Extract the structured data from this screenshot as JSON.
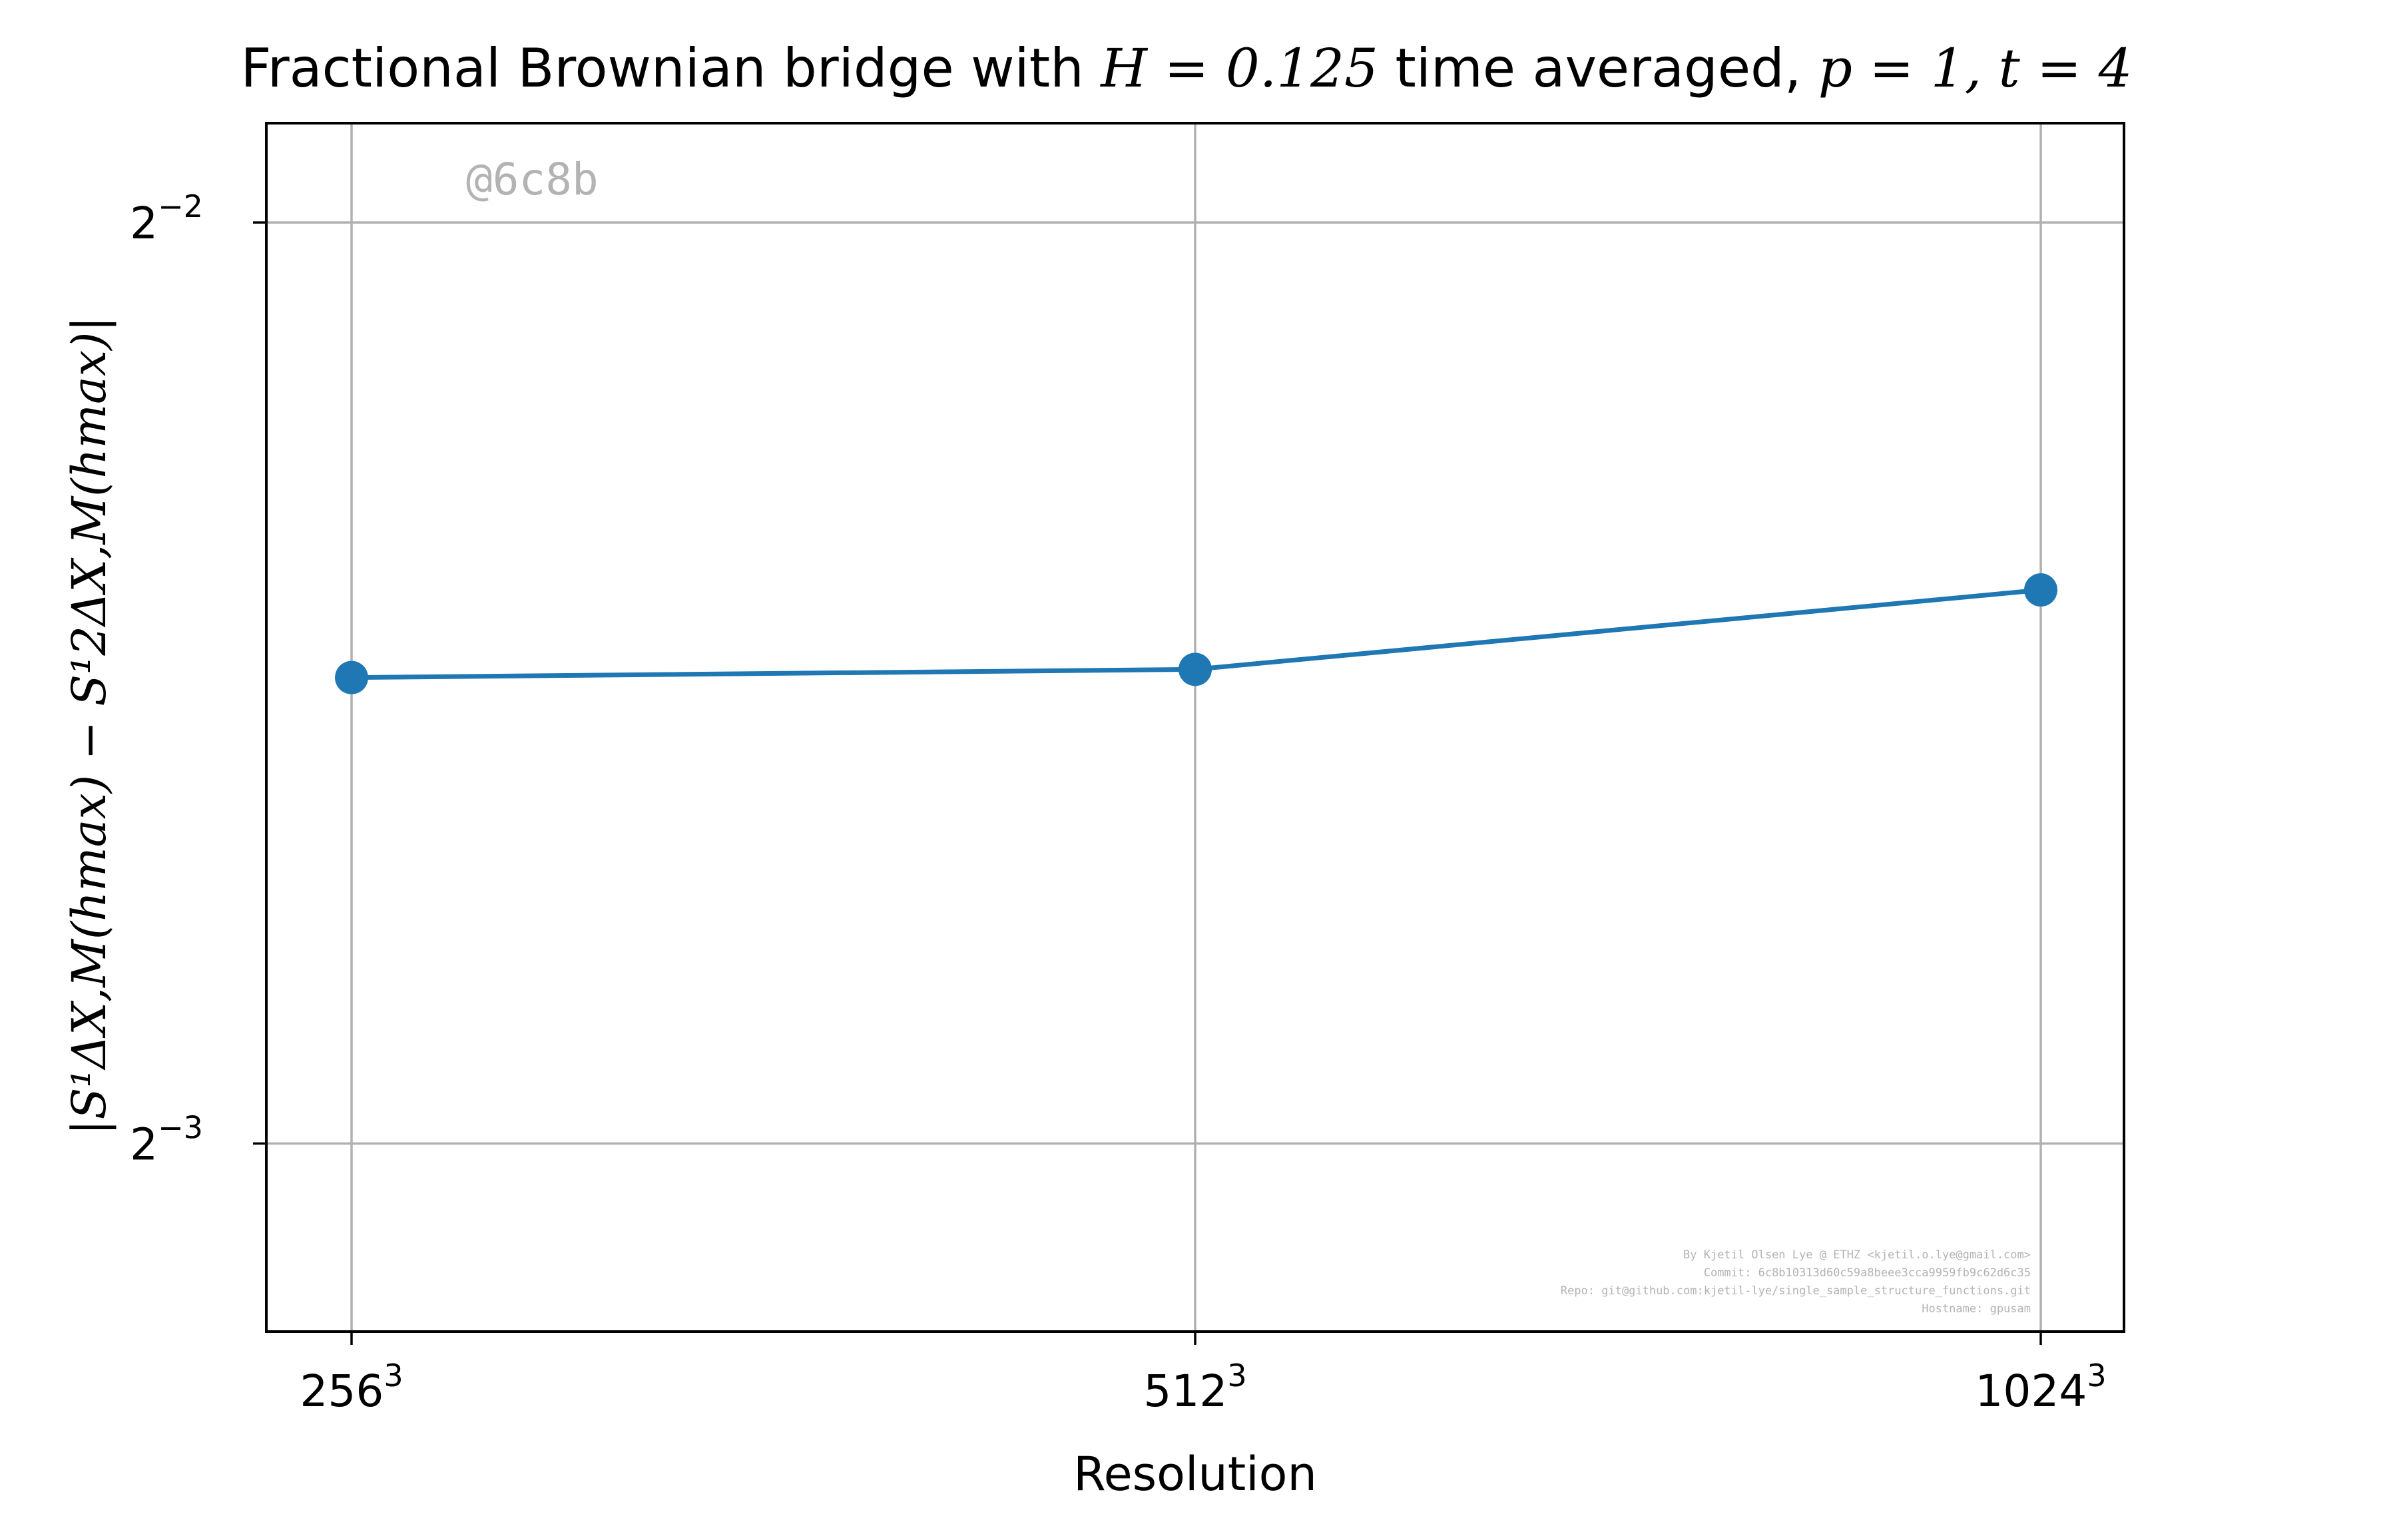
{
  "chart_data": {
    "type": "line",
    "title_prefix": "Fractional Brownian bridge with ",
    "title_math_1": "H = 0.125",
    "title_middle": " time averaged, ",
    "title_math_2": "p = 1, t = 4",
    "xlabel": "Resolution",
    "ylabel": "|S¹ΔX,M(hmax) − S¹2ΔX,M(hmax)|",
    "y_scale": "log2",
    "ylim": [
      0.1085,
      0.2694
    ],
    "grid": true,
    "x_ticks": [
      {
        "base": "256",
        "exp": "3"
      },
      {
        "base": "512",
        "exp": "3"
      },
      {
        "base": "1024",
        "exp": "3"
      }
    ],
    "y_ticks": [
      {
        "value": 0.25,
        "base": "2",
        "exp": "−2"
      },
      {
        "value": 0.125,
        "base": "2",
        "exp": "−3"
      }
    ],
    "series": [
      {
        "color": "#1f77b4",
        "x": [
          "256³",
          "512³",
          "1024³"
        ],
        "values": [
          0.1775,
          0.1786,
          0.1896
        ]
      }
    ],
    "watermark": "@6c8b",
    "credits": [
      "By Kjetil Olsen Lye @ ETHZ <kjetil.o.lye@gmail.com>",
      "Commit: 6c8b10313d60c59a8beee3cca9959fb9c62d6c35",
      "Repo: git@github.com:kjetil-lye/single_sample_structure_functions.git",
      "Hostname: gpusam"
    ]
  }
}
